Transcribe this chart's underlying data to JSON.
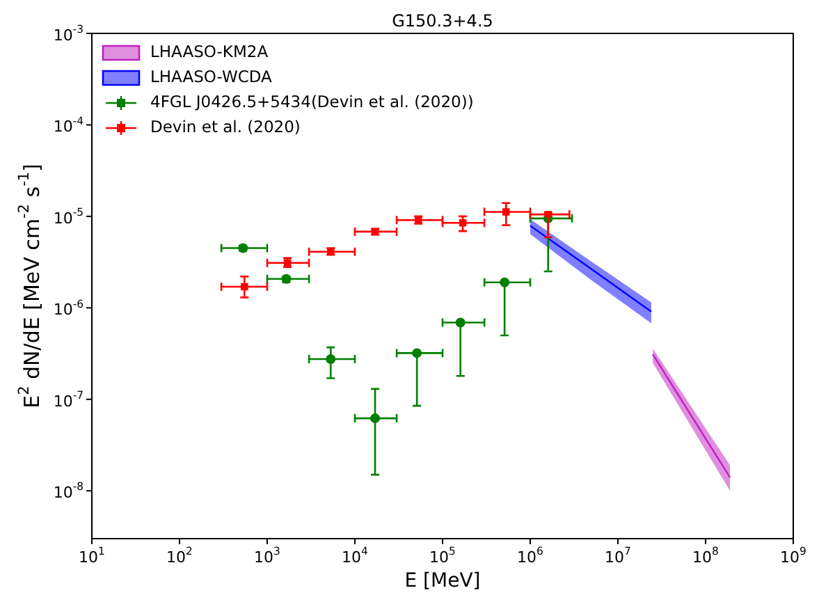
{
  "chart_data": {
    "type": "scatter",
    "title": "G150.3+4.5",
    "xlabel": "E [MeV]",
    "ylabel": "E$^{2}$ dN/dE [MeV cm$^{-2}$ s$^{-1}$]",
    "log": "xy",
    "legend": "top left",
    "xlim": [
      10,
      1000000000
    ],
    "ylim": [
      3e-09,
      0.001
    ],
    "xticks": [
      {
        "value": 10,
        "label": "10$^{1}$"
      },
      {
        "value": 100,
        "label": "10$^{2}$"
      },
      {
        "value": 1000,
        "label": "10$^{3}$"
      },
      {
        "value": 10000,
        "label": "10$^{4}$"
      },
      {
        "value": 100000,
        "label": "10$^{5}$"
      },
      {
        "value": 1000000,
        "label": "10$^{6}$"
      },
      {
        "value": 10000000,
        "label": "10$^{7}$"
      },
      {
        "value": 100000000,
        "label": "10$^{8}$"
      },
      {
        "value": 1000000000,
        "label": "10$^{9}$"
      }
    ],
    "yticks": [
      {
        "value": 1e-08,
        "label": "10$^{-8}$"
      },
      {
        "value": 1e-07,
        "label": "10$^{-7}$"
      },
      {
        "value": 1e-06,
        "label": "10$^{-6}$"
      },
      {
        "value": 1e-05,
        "label": "10$^{-5}$"
      },
      {
        "value": 0.0001,
        "label": "10$^{-4}$"
      },
      {
        "value": 0.001,
        "label": "10$^{-3}$"
      }
    ],
    "series": [
      {
        "name": "LHAASO-KM2A",
        "type": "line",
        "color": "#c020c0",
        "x": [
          25000000,
          190000000
        ],
        "values": [
          3.1e-07,
          1.4e-08
        ],
        "lower": [
          2.5e-07,
          1e-08
        ],
        "upper": [
          3.6e-07,
          1.9e-08
        ]
      },
      {
        "name": "LHAASO-WCDA",
        "type": "line",
        "color": "#0000ff",
        "x": [
          1000000,
          5000000,
          24000000
        ],
        "values": [
          7.9e-06,
          2.65e-06,
          9.1e-07
        ],
        "lower": [
          6.4e-06,
          2e-06,
          6.8e-07
        ],
        "upper": [
          9.3e-06,
          3.2e-06,
          1.15e-06
        ]
      },
      {
        "name": "4FGL J0426.5+5434(Devin et al. (2020))",
        "marker": "circle",
        "color": "#008000",
        "x": [
          530,
          1650,
          5300,
          17000,
          51000,
          160000,
          510000,
          1600000
        ],
        "values": [
          4.5e-06,
          2.07e-06,
          2.75e-07,
          6.2e-08,
          3.2e-07,
          6.9e-07,
          1.9e-06,
          9.5e-06
        ],
        "errors": [
          [
            4.2e-06,
            4.8e-06
          ],
          [
            1.9e-06,
            2.2e-06
          ],
          [
            1.7e-07,
            3.7e-07
          ],
          [
            1.5e-08,
            1.3e-07
          ],
          [
            8.5e-08,
            3.2e-07
          ],
          [
            1.8e-07,
            6.9e-07
          ],
          [
            5e-07,
            1.9e-06
          ],
          [
            2.5e-06,
            9.5e-06
          ]
        ],
        "xerrors": [
          [
            300,
            1000
          ],
          [
            1000,
            3000
          ],
          [
            3000,
            10000
          ],
          [
            10000,
            30000
          ],
          [
            30000,
            100000
          ],
          [
            100000,
            300000
          ],
          [
            300000,
            1000000
          ],
          [
            1000000,
            3000000
          ]
        ]
      },
      {
        "name": "Devin et al. (2020)",
        "marker": "square",
        "color": "#ff0000",
        "x": [
          550,
          1700,
          5300,
          17000,
          53000,
          170000,
          530000,
          1600000
        ],
        "values": [
          1.7e-06,
          3.1e-06,
          4.1e-06,
          6.8e-06,
          9.1e-06,
          8.5e-06,
          1.12e-05,
          1.05e-05
        ],
        "errors": [
          [
            1.3e-06,
            2.2e-06
          ],
          [
            2.8e-06,
            3.5e-06
          ],
          [
            3.8e-06,
            4.5e-06
          ],
          [
            6.3e-06,
            7.3e-06
          ],
          [
            8.3e-06,
            1e-05
          ],
          [
            6.9e-06,
            1e-05
          ],
          [
            8e-06,
            1.4e-05
          ],
          [
            5.9e-06,
            1.1e-05
          ]
        ],
        "xerrors": [
          [
            300,
            1000
          ],
          [
            1000,
            3000
          ],
          [
            3000,
            10000
          ],
          [
            10000,
            30000
          ],
          [
            30000,
            100000
          ],
          [
            100000,
            300000
          ],
          [
            300000,
            1000000
          ],
          [
            1000000,
            2800000
          ]
        ]
      }
    ]
  }
}
